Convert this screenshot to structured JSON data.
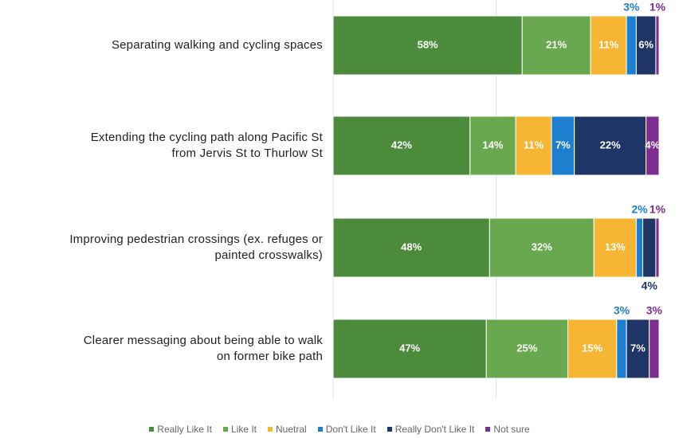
{
  "chart_data": {
    "type": "stacked-barh",
    "categories": [
      "Separating walking and cycling spaces",
      "Extending the cycling path along Pacific St\nfrom Jervis St to Thurlow St",
      "Improving pedestrian crossings (ex. refuges or\npainted crosswalks)",
      "Clearer messaging about being able to walk\non former bike path"
    ],
    "series": [
      {
        "name": "Really Like It",
        "color": "#4b8b3b",
        "values": [
          58,
          42,
          48,
          47
        ],
        "value_labels": [
          "58%",
          "42%",
          "48%",
          "47%"
        ]
      },
      {
        "name": "Like It",
        "color": "#6aa84f",
        "values": [
          21,
          14,
          32,
          25
        ],
        "value_labels": [
          "21%",
          "14%",
          "32%",
          "25%"
        ]
      },
      {
        "name": "Nuetral",
        "color": "#f6b634",
        "values": [
          11,
          11,
          13,
          15
        ],
        "value_labels": [
          "11%",
          "11%",
          "13%",
          "15%"
        ]
      },
      {
        "name": "Don't Like It",
        "color": "#1c7fcf",
        "values": [
          3,
          7,
          2,
          3
        ],
        "value_labels": [
          "3%",
          "7%",
          "2%",
          "3%"
        ]
      },
      {
        "name": "Really Don't Like It",
        "color": "#1f3566",
        "values": [
          6,
          22,
          4,
          7
        ],
        "value_labels": [
          "6%",
          "22%",
          "4%",
          "7%"
        ]
      },
      {
        "name": "Not sure",
        "color": "#7d2d90",
        "values": [
          1,
          4,
          1,
          3
        ],
        "value_labels": [
          "1%",
          "4%",
          "1%",
          "3%"
        ]
      }
    ],
    "xlim": [
      0,
      100
    ]
  }
}
